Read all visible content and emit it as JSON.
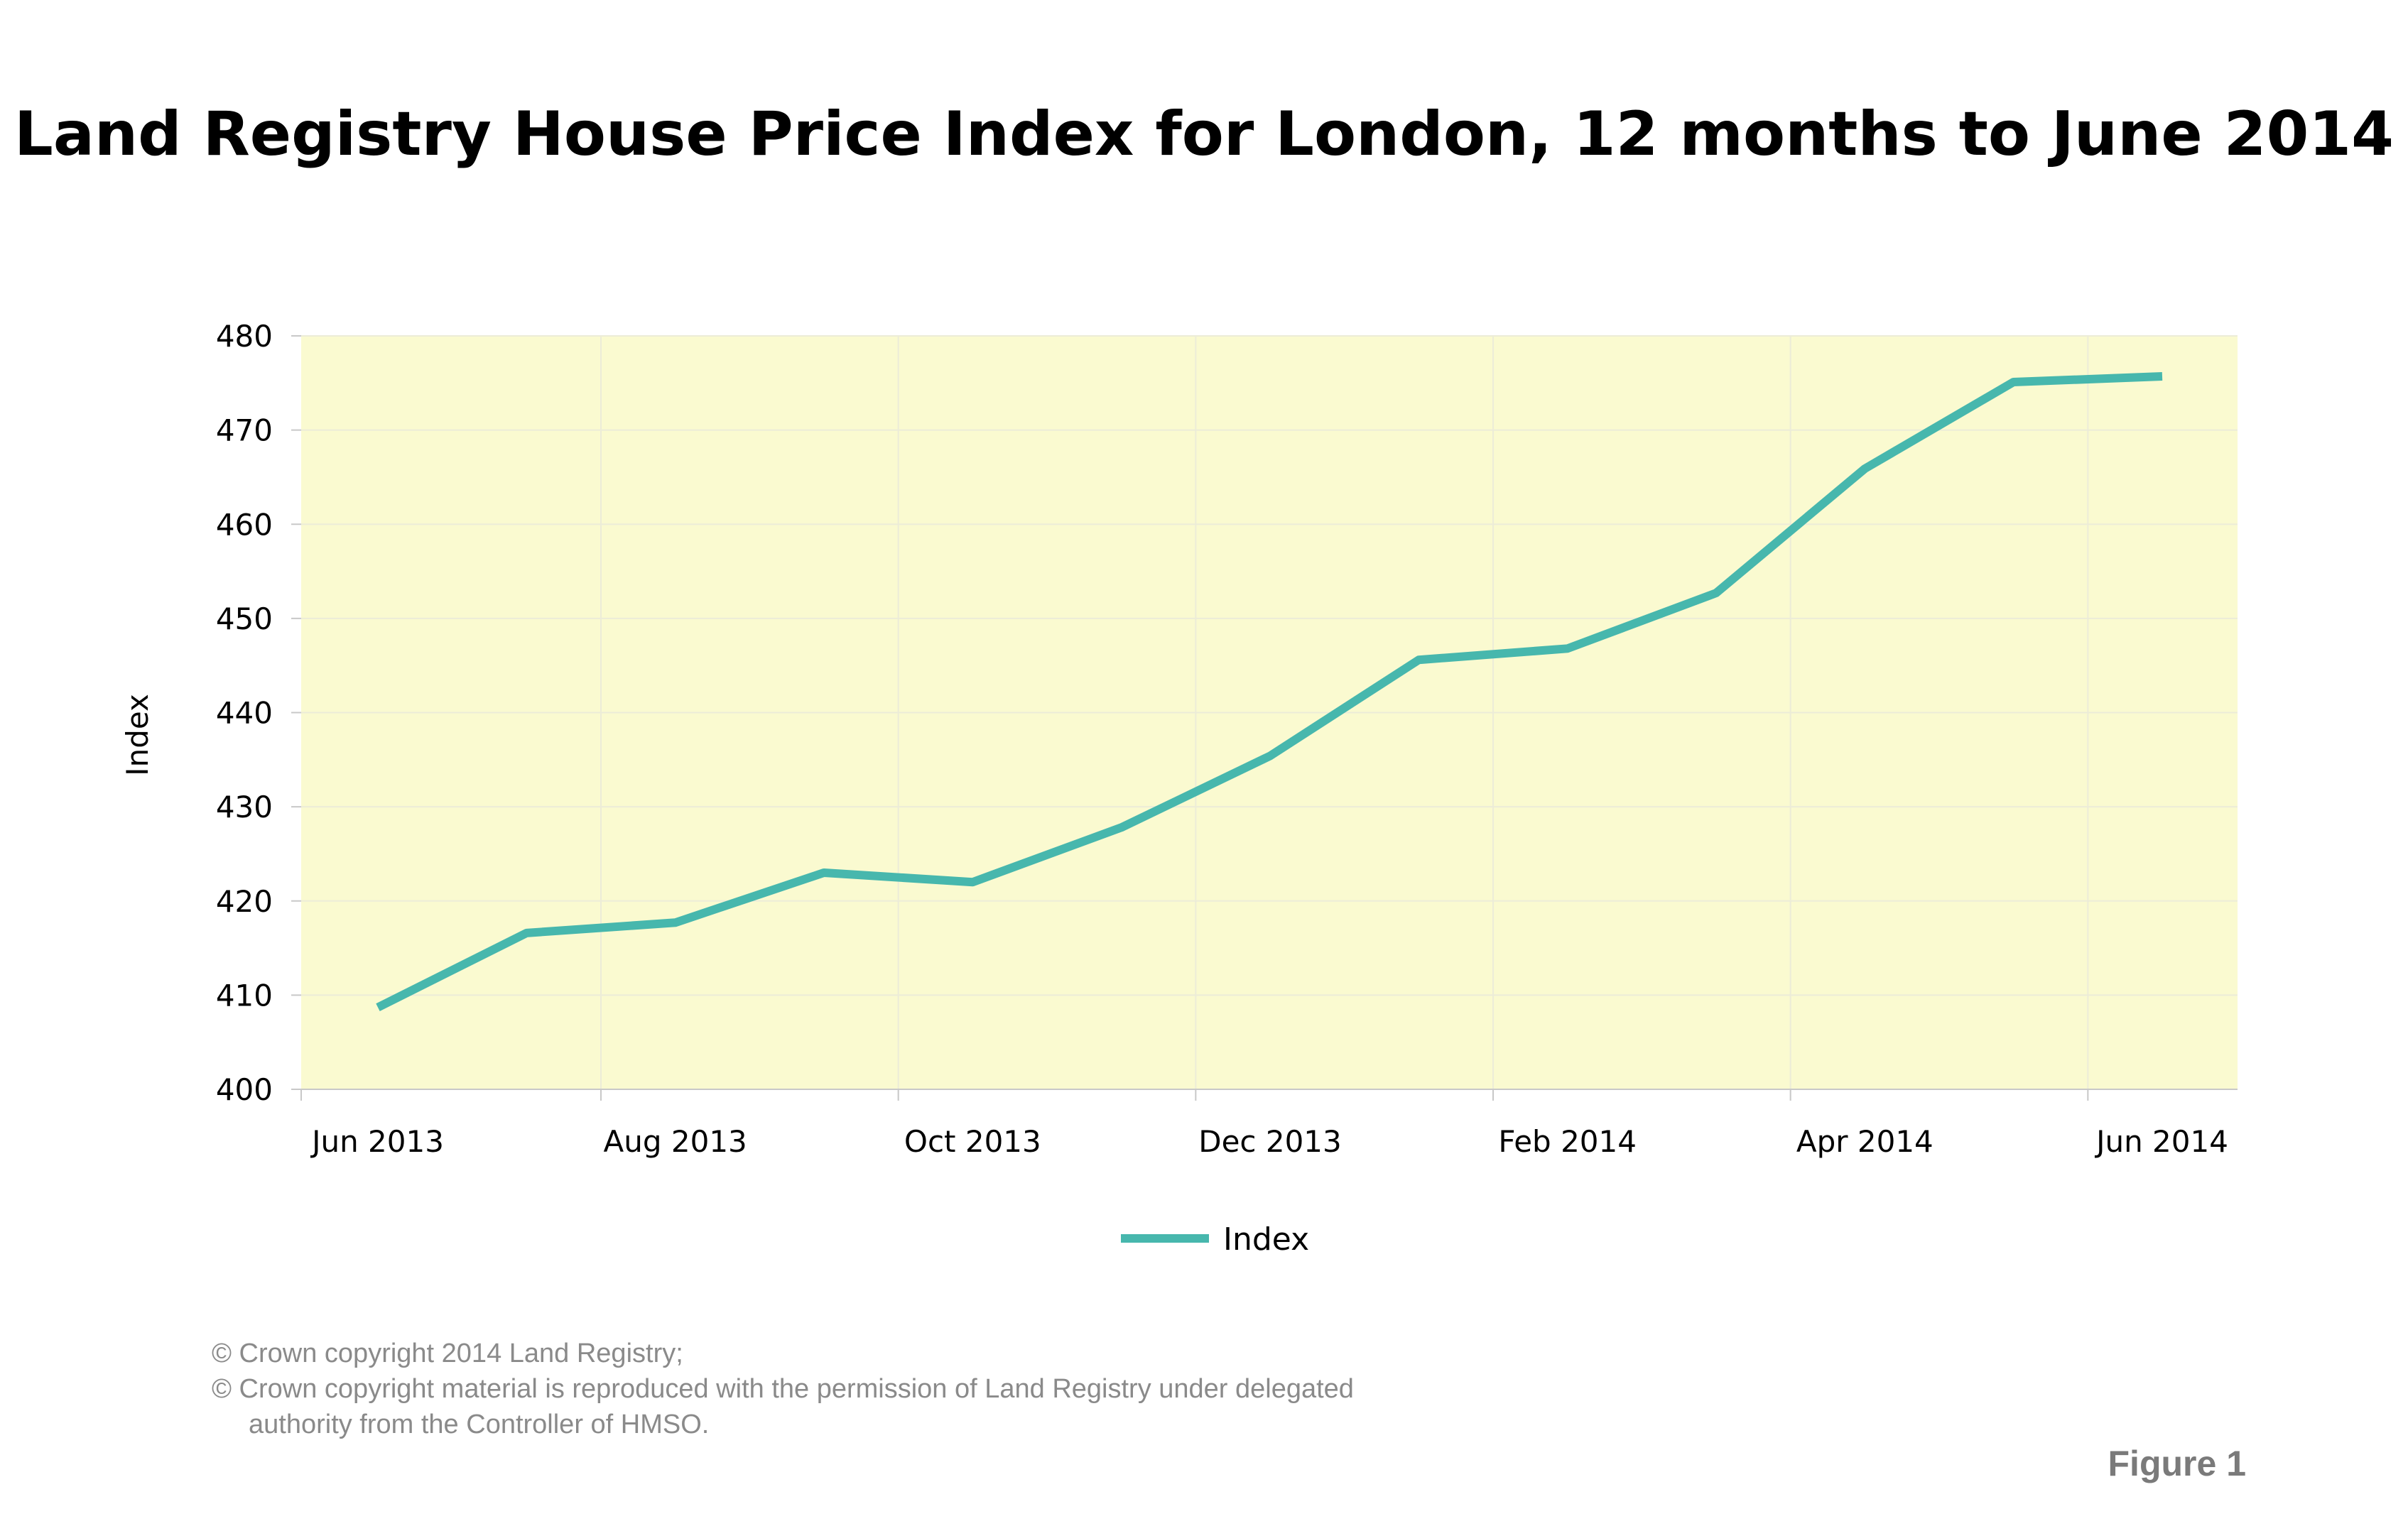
{
  "title": "Land Registry House Price Index for London, 12 months to June 2014",
  "footer": {
    "line1": "© Crown copyright 2014 Land Registry;",
    "line2": "© Crown copyright material is reproduced with the permission of Land Registry under delegated",
    "line3": "authority from the Controller of HMSO."
  },
  "figure_label": "Figure 1",
  "colors": {
    "plot_background": "#fafad0",
    "series_line": "#47b7ad",
    "grid": "#ececd8"
  },
  "chart_data": {
    "type": "line",
    "title": "Land Registry House Price Index for London, 12 months to June 2014",
    "xlabel": "",
    "ylabel": "Index",
    "ylim": [
      400,
      480
    ],
    "yticks": [
      400,
      410,
      420,
      430,
      440,
      450,
      460,
      470,
      480
    ],
    "x": [
      "Jun 2013",
      "Jul 2013",
      "Aug 2013",
      "Sep 2013",
      "Oct 2013",
      "Nov 2013",
      "Dec 2013",
      "Jan 2014",
      "Feb 2014",
      "Mar 2014",
      "Apr 2014",
      "May 2014",
      "Jun 2014"
    ],
    "xtick_labels": [
      "Jun 2013",
      "Aug 2013",
      "Oct 2013",
      "Dec 2013",
      "Feb 2014",
      "Apr 2014",
      "Jun 2014"
    ],
    "series": [
      {
        "name": "Index",
        "values": [
          408.7,
          416.6,
          417.7,
          423.0,
          422.0,
          427.8,
          435.4,
          445.6,
          446.8,
          452.7,
          465.9,
          475.1,
          475.7
        ]
      }
    ],
    "grid": true,
    "legend": "bottom-center"
  }
}
